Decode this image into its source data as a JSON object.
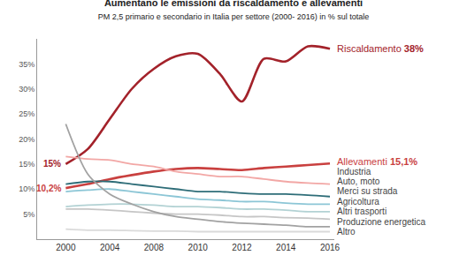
{
  "chart_data": {
    "type": "line",
    "title": "Aumentano le emissioni da riscaldamento e allevamenti",
    "subtitle": "PM 2,5 primario e secondario in Italia per settore (2000- 2016) in % sul totale",
    "categories": [
      "2000",
      null,
      "2004",
      null,
      "2008",
      null,
      "2010",
      null,
      "2012",
      null,
      "2014",
      null,
      "2016"
    ],
    "ylim": [
      0,
      40
    ],
    "yticks": [
      {
        "value": 5,
        "label": "5%"
      },
      {
        "value": 10,
        "label": "10%"
      },
      {
        "value": 15,
        "label": "15%"
      },
      {
        "value": 20,
        "label": "20%"
      },
      {
        "value": 25,
        "label": "25%"
      },
      {
        "value": 30,
        "label": "30%"
      },
      {
        "value": 35,
        "label": "35%"
      }
    ],
    "grid": false,
    "series": [
      {
        "name": "Riscaldamento",
        "color": "#a3222a",
        "values": [
          15,
          18,
          24,
          30,
          34,
          36.5,
          37,
          33,
          27.5,
          36,
          35.5,
          38.5,
          38
        ],
        "value_labels": [
          "15%",
          null,
          null,
          null,
          null,
          null,
          null,
          null,
          null,
          null,
          null,
          null,
          "38%"
        ]
      },
      {
        "name": "Allevamenti",
        "color": "#c9403f",
        "values": [
          10.2,
          11,
          12,
          12.8,
          13.5,
          14,
          14.2,
          14,
          13.8,
          14.2,
          14.5,
          14.8,
          15.1
        ],
        "value_labels": [
          "10,2%",
          null,
          null,
          null,
          null,
          null,
          null,
          null,
          null,
          null,
          null,
          null,
          "15,1%"
        ]
      },
      {
        "name": "Industria",
        "color": "#f2a7a5",
        "values": [
          16.5,
          16,
          15.8,
          15,
          14.5,
          13.5,
          13,
          12.5,
          12.5,
          12,
          11.5,
          11.2,
          11
        ]
      },
      {
        "name": "Auto, moto",
        "color": "#2e6d78",
        "values": [
          11,
          11.5,
          11.5,
          11,
          10.5,
          10,
          9.5,
          9.5,
          9.2,
          9,
          9,
          8.8,
          8.5
        ]
      },
      {
        "name": "Merci su strada",
        "color": "#8cc6d6",
        "values": [
          9.5,
          9.8,
          10,
          9.5,
          9,
          8.5,
          8,
          7.8,
          7.5,
          7.5,
          7.2,
          7,
          7
        ]
      },
      {
        "name": "Agricoltura",
        "color": "#b3d2d4",
        "values": [
          6.5,
          6.8,
          7,
          7,
          6.8,
          6.5,
          6.5,
          6.3,
          6,
          6,
          5.8,
          5.5,
          5.5
        ]
      },
      {
        "name": "Altri trasporti",
        "color": "#c6c6c6",
        "values": [
          6,
          6,
          5.8,
          5.5,
          5.2,
          5,
          5,
          4.8,
          4.5,
          4.5,
          4.3,
          4.2,
          4
        ]
      },
      {
        "name": "Produzione energetica",
        "color": "#a2a2a2",
        "values": [
          23,
          13,
          9,
          7,
          5.5,
          4.5,
          4,
          3.5,
          3.2,
          3,
          2.8,
          2.5,
          2.5
        ]
      },
      {
        "name": "Altro",
        "color": "#dadada",
        "values": [
          2,
          1.8,
          1.8,
          1.7,
          1.6,
          1.6,
          1.5,
          1.5,
          1.5,
          1.5,
          1.5,
          1.5,
          1.5
        ]
      }
    ]
  }
}
